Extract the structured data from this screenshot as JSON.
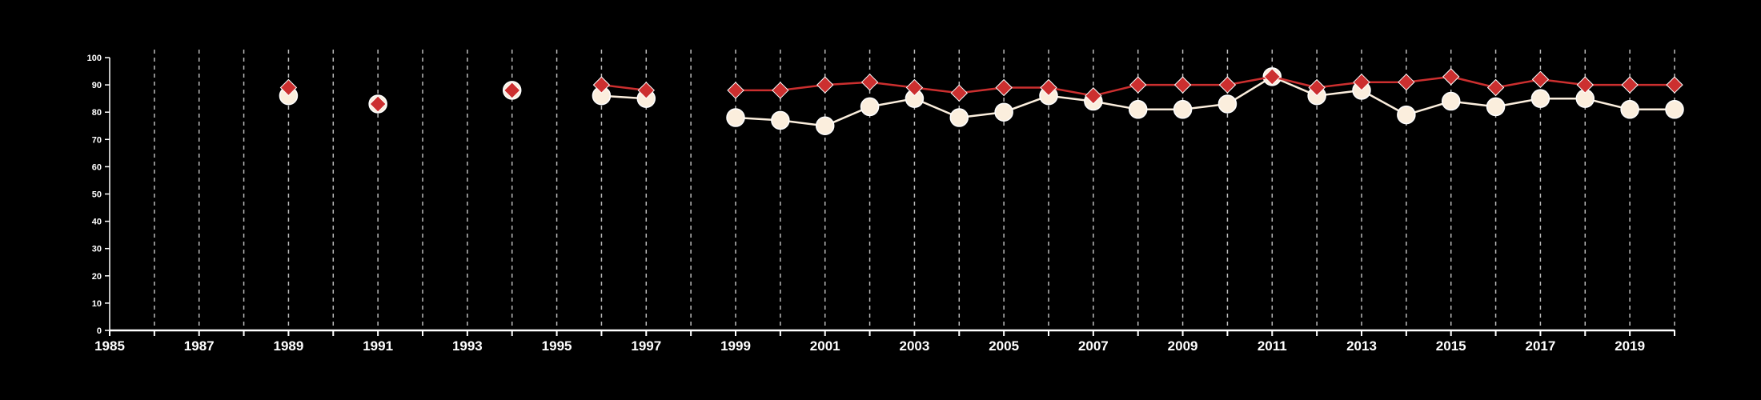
{
  "chart_data": {
    "type": "line",
    "xlim": [
      1985,
      2020
    ],
    "ylim": [
      0,
      100
    ],
    "x_ticks": [
      1985,
      1987,
      1989,
      1991,
      1993,
      1995,
      1997,
      1999,
      2001,
      2003,
      2005,
      2007,
      2009,
      2011,
      2013,
      2015,
      2017,
      2019
    ],
    "y_ticks": [
      0,
      10,
      20,
      30,
      40,
      50,
      60,
      70,
      80,
      90,
      100
    ],
    "grid": "vertical-dashed-yearly",
    "colors": {
      "background": "#000000",
      "axis": "#ffffff",
      "grid": "#bbbbbb",
      "series_white": "#fbeedd",
      "series_red": "#cc2f2f"
    },
    "series": [
      {
        "marker": "circle",
        "color": "#fbeedd",
        "points": [
          [
            1989,
            86
          ],
          [
            1991,
            83
          ],
          [
            1994,
            88
          ],
          [
            1996,
            86
          ],
          [
            1997,
            85
          ],
          [
            1999,
            78
          ],
          [
            2000,
            77
          ],
          [
            2001,
            75
          ],
          [
            2002,
            82
          ],
          [
            2003,
            85
          ],
          [
            2004,
            78
          ],
          [
            2005,
            80
          ],
          [
            2006,
            86
          ],
          [
            2007,
            84
          ],
          [
            2008,
            81
          ],
          [
            2009,
            81
          ],
          [
            2010,
            83
          ],
          [
            2011,
            93
          ],
          [
            2012,
            86
          ],
          [
            2013,
            88
          ],
          [
            2014,
            79
          ],
          [
            2015,
            84
          ],
          [
            2016,
            82
          ],
          [
            2017,
            85
          ],
          [
            2018,
            85
          ],
          [
            2019,
            81
          ],
          [
            2020,
            81
          ]
        ],
        "segments": [
          [
            1996,
            1997
          ],
          [
            1999,
            2020
          ]
        ]
      },
      {
        "marker": "diamond",
        "color": "#cc2f2f",
        "points": [
          [
            1989,
            89
          ],
          [
            1991,
            83
          ],
          [
            1994,
            88
          ],
          [
            1996,
            90
          ],
          [
            1997,
            88
          ],
          [
            1999,
            88
          ],
          [
            2000,
            88
          ],
          [
            2001,
            90
          ],
          [
            2002,
            91
          ],
          [
            2003,
            89
          ],
          [
            2004,
            87
          ],
          [
            2005,
            89
          ],
          [
            2006,
            89
          ],
          [
            2007,
            86
          ],
          [
            2008,
            90
          ],
          [
            2009,
            90
          ],
          [
            2010,
            90
          ],
          [
            2011,
            93
          ],
          [
            2012,
            89
          ],
          [
            2013,
            91
          ],
          [
            2014,
            91
          ],
          [
            2015,
            93
          ],
          [
            2016,
            89
          ],
          [
            2017,
            92
          ],
          [
            2018,
            90
          ],
          [
            2019,
            90
          ],
          [
            2020,
            90
          ]
        ],
        "segments": [
          [
            1996,
            1997
          ],
          [
            1999,
            2020
          ]
        ]
      }
    ]
  }
}
